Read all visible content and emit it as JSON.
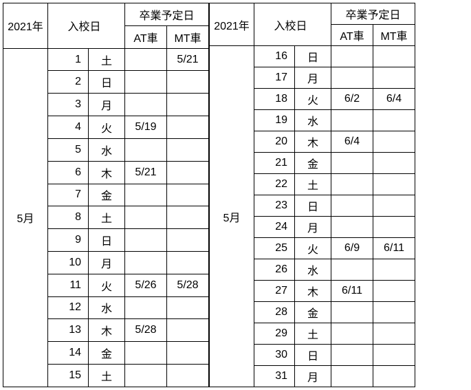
{
  "labels": {
    "year": "2021年",
    "entry": "入校日",
    "grad": "卒業予定日",
    "at": "AT車",
    "mt": "MT車",
    "month": "5月"
  },
  "left": {
    "rows": [
      {
        "day": "1",
        "dow": "土",
        "at": "",
        "mt": "5/21"
      },
      {
        "day": "2",
        "dow": "日",
        "at": "",
        "mt": ""
      },
      {
        "day": "3",
        "dow": "月",
        "at": "",
        "mt": ""
      },
      {
        "day": "4",
        "dow": "火",
        "at": "5/19",
        "mt": ""
      },
      {
        "day": "5",
        "dow": "水",
        "at": "",
        "mt": ""
      },
      {
        "day": "6",
        "dow": "木",
        "at": "5/21",
        "mt": ""
      },
      {
        "day": "7",
        "dow": "金",
        "at": "",
        "mt": ""
      },
      {
        "day": "8",
        "dow": "土",
        "at": "",
        "mt": ""
      },
      {
        "day": "9",
        "dow": "日",
        "at": "",
        "mt": ""
      },
      {
        "day": "10",
        "dow": "月",
        "at": "",
        "mt": ""
      },
      {
        "day": "11",
        "dow": "火",
        "at": "5/26",
        "mt": "5/28"
      },
      {
        "day": "12",
        "dow": "水",
        "at": "",
        "mt": ""
      },
      {
        "day": "13",
        "dow": "木",
        "at": "5/28",
        "mt": ""
      },
      {
        "day": "14",
        "dow": "金",
        "at": "",
        "mt": ""
      },
      {
        "day": "15",
        "dow": "土",
        "at": "",
        "mt": ""
      }
    ]
  },
  "right": {
    "rows": [
      {
        "day": "16",
        "dow": "日",
        "at": "",
        "mt": ""
      },
      {
        "day": "17",
        "dow": "月",
        "at": "",
        "mt": ""
      },
      {
        "day": "18",
        "dow": "火",
        "at": "6/2",
        "mt": "6/4"
      },
      {
        "day": "19",
        "dow": "水",
        "at": "",
        "mt": ""
      },
      {
        "day": "20",
        "dow": "木",
        "at": "6/4",
        "mt": ""
      },
      {
        "day": "21",
        "dow": "金",
        "at": "",
        "mt": ""
      },
      {
        "day": "22",
        "dow": "土",
        "at": "",
        "mt": ""
      },
      {
        "day": "23",
        "dow": "日",
        "at": "",
        "mt": ""
      },
      {
        "day": "24",
        "dow": "月",
        "at": "",
        "mt": ""
      },
      {
        "day": "25",
        "dow": "火",
        "at": "6/9",
        "mt": "6/11"
      },
      {
        "day": "26",
        "dow": "水",
        "at": "",
        "mt": ""
      },
      {
        "day": "27",
        "dow": "木",
        "at": "6/11",
        "mt": ""
      },
      {
        "day": "28",
        "dow": "金",
        "at": "",
        "mt": ""
      },
      {
        "day": "29",
        "dow": "土",
        "at": "",
        "mt": ""
      },
      {
        "day": "30",
        "dow": "日",
        "at": "",
        "mt": ""
      },
      {
        "day": "31",
        "dow": "月",
        "at": "",
        "mt": ""
      }
    ]
  }
}
